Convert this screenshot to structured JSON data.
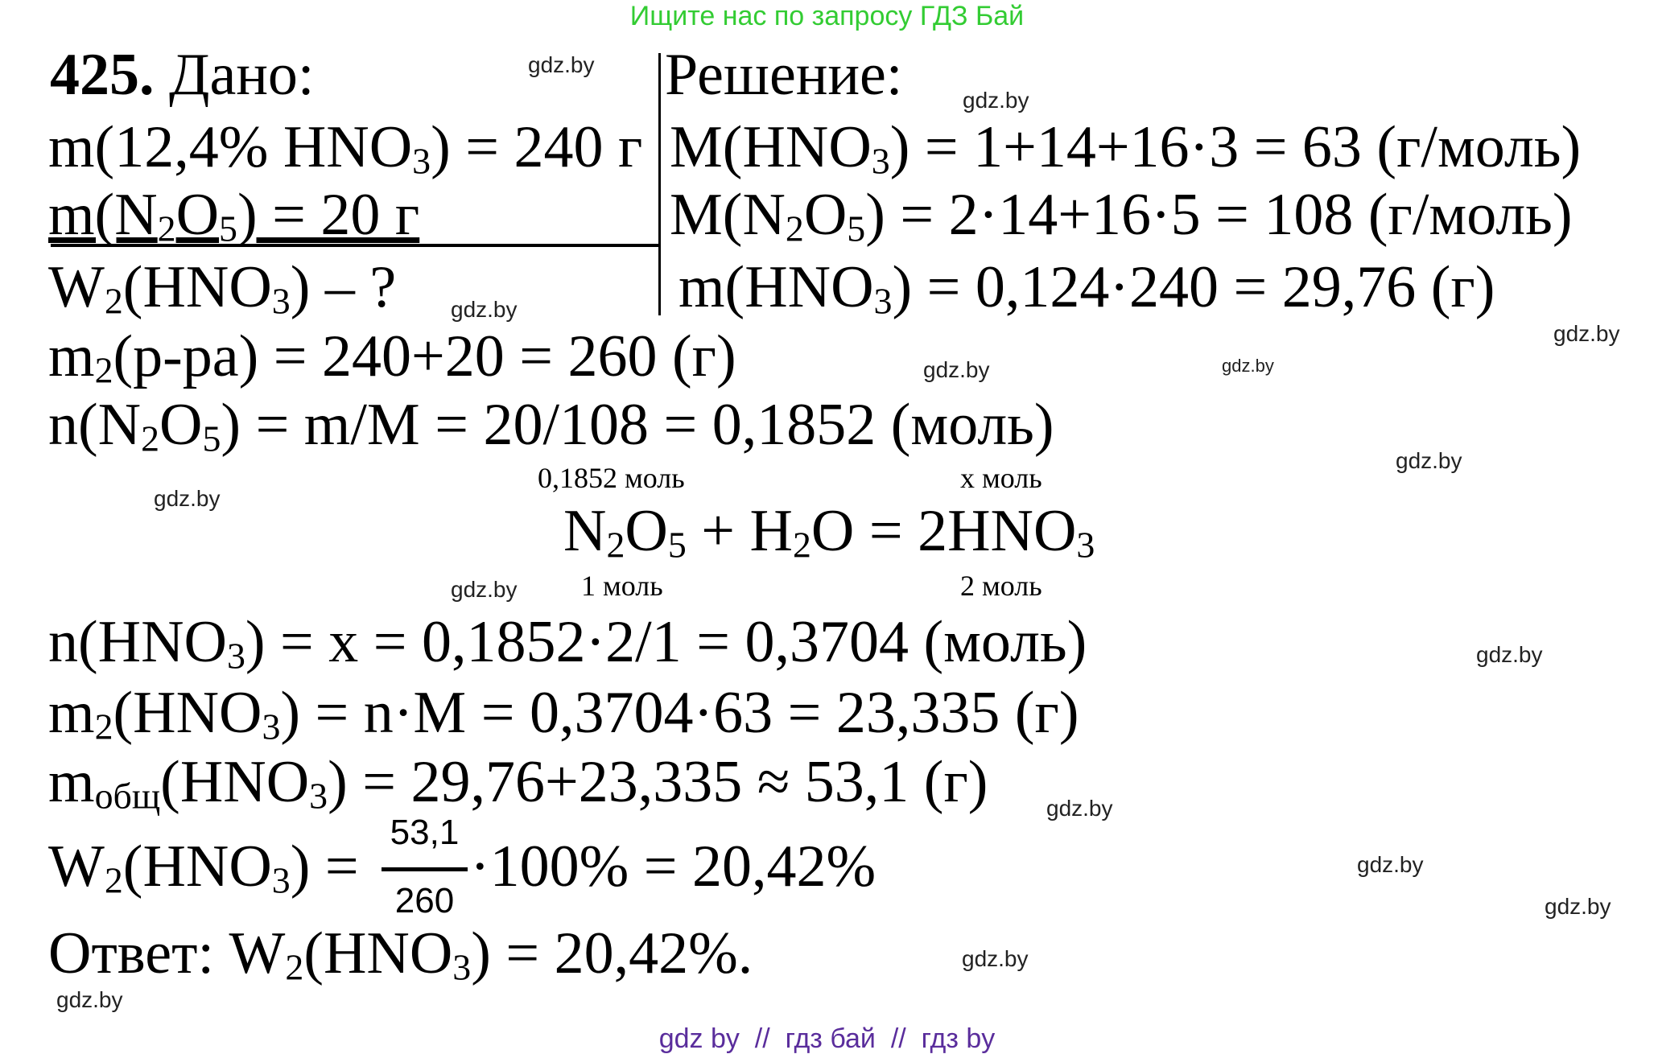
{
  "header": {
    "search_banner": "Ищите нас по запросу ГДЗ Бай"
  },
  "problem": {
    "number": "425.",
    "given_label": "Дано:",
    "solution_label": "Решение:"
  },
  "lines": {
    "given_solution_mass": [
      "m(12,4% HNO",
      "3",
      ") = 240 г"
    ],
    "given_n2o5_mass": [
      "m(N",
      "2",
      "O",
      "5",
      ") = 20 г"
    ],
    "find": [
      "W",
      "2",
      "(HNO",
      "3",
      ") – ?"
    ],
    "molar_mass_hno3": [
      "M(HNO",
      "3",
      ") = 1+14+16·3 = 63 (г/моль)"
    ],
    "molar_mass_n2o5": [
      "M(N",
      "2",
      "O",
      "5",
      ") = 2·14+16·5 = 108 (г/моль)"
    ],
    "mass_hno3": [
      "m(HNO",
      "3",
      ") = 0,124·240 = 29,76 (г)"
    ],
    "solution_mass": [
      "m",
      "2",
      "(р-ра) = 240+20 = 260 (г)"
    ],
    "moles_n2o5": [
      "n(N",
      "2",
      "O",
      "5",
      ") = m/M = 20/108 = 0,1852 (моль)"
    ],
    "reaction": [
      "N",
      "2",
      "O",
      "5",
      " + H",
      "2",
      "O = 2HNO",
      "3"
    ],
    "moles_hno3": [
      "n(HNO",
      "3",
      ") = x = 0,1852·2/1 = 0,3704 (моль)"
    ],
    "mass2_hno3": [
      "m",
      "2",
      "(HNO",
      "3",
      ") = n·M = 0,3704·63 = 23,335 (г)"
    ],
    "total_mass": [
      "m",
      "общ",
      "(HNO",
      "3",
      ") = 29,76+23,335 ≈ 53,1 (г)"
    ],
    "fraction_lhs": [
      "W",
      "2",
      "(HNO",
      "3",
      ") ="
    ],
    "fraction_rhs": [
      "·100% = 20,42%"
    ],
    "answer": [
      "Ответ: W",
      "2",
      "(HNO",
      "3",
      ") = 20,42%."
    ]
  },
  "reaction_labels": {
    "above_n2o5": "0,1852 моль",
    "above_hno3": "х моль",
    "below_n2o5": "1 моль",
    "below_hno3": "2 моль"
  },
  "fraction": {
    "numerator": "53,1",
    "denominator": "260"
  },
  "watermark": "gdz.by",
  "footer": {
    "links": "gdz by  //  гдз бай  //  гдз by"
  },
  "colors": {
    "banner": "#33cc33",
    "footer": "#5a2d9c",
    "text": "#000000"
  }
}
